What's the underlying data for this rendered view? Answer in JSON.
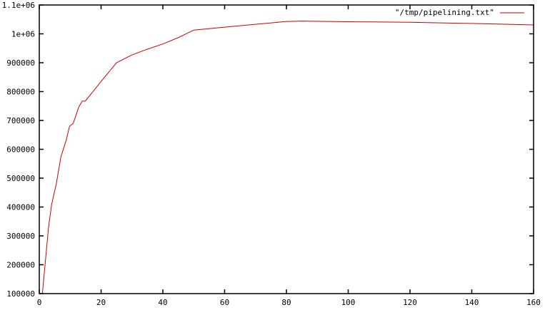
{
  "chart_data": {
    "type": "line",
    "title": "",
    "xlabel": "",
    "ylabel": "",
    "xlim": [
      0,
      160
    ],
    "ylim": [
      100000,
      1100000
    ],
    "grid": false,
    "legend_position": "top-right",
    "xticks": [
      "0",
      "20",
      "40",
      "60",
      "80",
      "100",
      "120",
      "140",
      "160"
    ],
    "xtick_values": [
      0,
      20,
      40,
      60,
      80,
      100,
      120,
      140,
      160
    ],
    "yticks": [
      "100000",
      "200000",
      "300000",
      "400000",
      "500000",
      "600000",
      "700000",
      "800000",
      "900000",
      "1e+06",
      "1.1e+06"
    ],
    "ytick_values": [
      100000,
      200000,
      300000,
      400000,
      500000,
      600000,
      700000,
      800000,
      900000,
      1000000,
      1100000
    ],
    "series": [
      {
        "name": "\"/tmp/pipelining.txt\"",
        "color": "#cc0000",
        "x": [
          1,
          3,
          4,
          5.5,
          7,
          8.7,
          9.8,
          11,
          12.8,
          13.9,
          14.9,
          20,
          25,
          30,
          35,
          40,
          45,
          50,
          60,
          70,
          80,
          85,
          100,
          120,
          140,
          160
        ],
        "y": [
          100000,
          330000,
          409000,
          480000,
          574000,
          631000,
          680000,
          690000,
          747000,
          767000,
          767000,
          835000,
          900000,
          927000,
          947000,
          965000,
          987000,
          1013000,
          1023000,
          1033000,
          1043000,
          1044000,
          1042000,
          1040000,
          1036000,
          1031000
        ]
      }
    ]
  }
}
